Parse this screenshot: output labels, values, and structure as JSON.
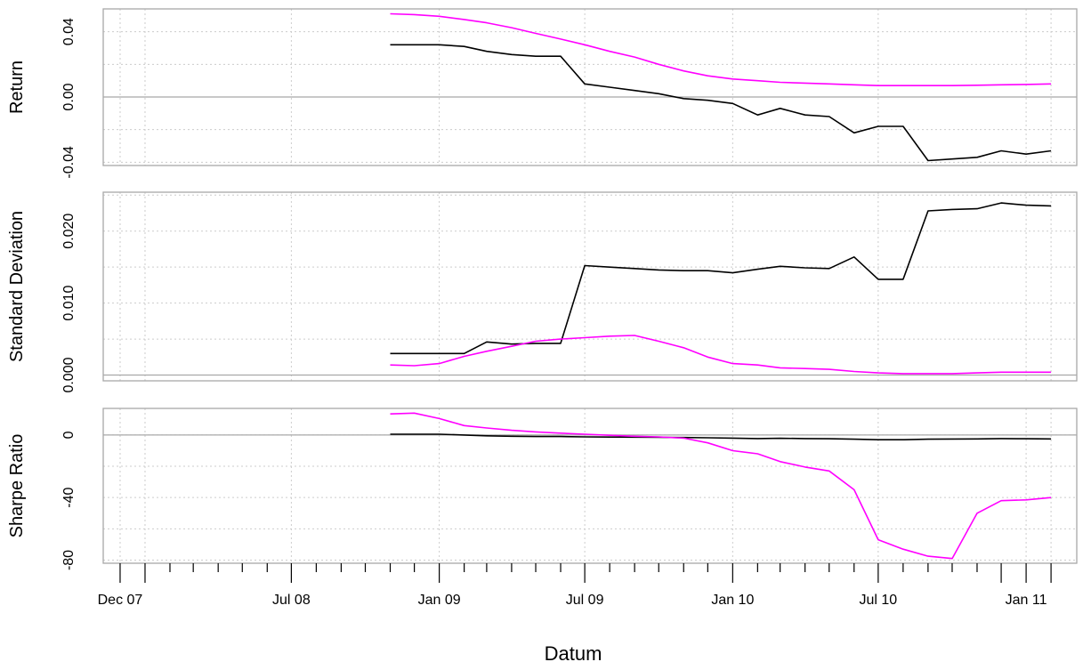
{
  "chart_data": {
    "type": "line",
    "xlabel": "Datum",
    "x_ticks": [
      {
        "date": "2007-12-01",
        "label": "Dec 07",
        "major": true
      },
      {
        "date": "2008-01-01",
        "label": "",
        "major": true
      },
      {
        "date": "2008-02-01",
        "label": "",
        "major": false
      },
      {
        "date": "2008-03-01",
        "label": "",
        "major": false
      },
      {
        "date": "2008-04-01",
        "label": "",
        "major": false
      },
      {
        "date": "2008-05-01",
        "label": "",
        "major": false
      },
      {
        "date": "2008-06-01",
        "label": "",
        "major": false
      },
      {
        "date": "2008-07-01",
        "label": "Jul 08",
        "major": true
      },
      {
        "date": "2008-08-01",
        "label": "",
        "major": false
      },
      {
        "date": "2008-09-01",
        "label": "",
        "major": false
      },
      {
        "date": "2008-10-01",
        "label": "",
        "major": false
      },
      {
        "date": "2008-11-01",
        "label": "",
        "major": false
      },
      {
        "date": "2008-12-01",
        "label": "",
        "major": false
      },
      {
        "date": "2009-01-01",
        "label": "Jan 09",
        "major": true
      },
      {
        "date": "2009-02-01",
        "label": "",
        "major": false
      },
      {
        "date": "2009-03-01",
        "label": "",
        "major": false
      },
      {
        "date": "2009-04-01",
        "label": "",
        "major": false
      },
      {
        "date": "2009-05-01",
        "label": "",
        "major": false
      },
      {
        "date": "2009-06-01",
        "label": "",
        "major": false
      },
      {
        "date": "2009-07-01",
        "label": "Jul 09",
        "major": true
      },
      {
        "date": "2009-08-01",
        "label": "",
        "major": false
      },
      {
        "date": "2009-09-01",
        "label": "",
        "major": false
      },
      {
        "date": "2009-10-01",
        "label": "",
        "major": false
      },
      {
        "date": "2009-11-01",
        "label": "",
        "major": false
      },
      {
        "date": "2009-12-01",
        "label": "",
        "major": false
      },
      {
        "date": "2010-01-01",
        "label": "Jan 10",
        "major": true
      },
      {
        "date": "2010-02-01",
        "label": "",
        "major": false
      },
      {
        "date": "2010-03-01",
        "label": "",
        "major": false
      },
      {
        "date": "2010-04-01",
        "label": "",
        "major": false
      },
      {
        "date": "2010-05-01",
        "label": "",
        "major": false
      },
      {
        "date": "2010-06-01",
        "label": "",
        "major": false
      },
      {
        "date": "2010-07-01",
        "label": "Jul 10",
        "major": true
      },
      {
        "date": "2010-08-01",
        "label": "",
        "major": false
      },
      {
        "date": "2010-09-01",
        "label": "",
        "major": false
      },
      {
        "date": "2010-10-01",
        "label": "",
        "major": false
      },
      {
        "date": "2010-11-01",
        "label": "",
        "major": false
      },
      {
        "date": "2010-12-01",
        "label": "",
        "major": true
      },
      {
        "date": "2011-01-01",
        "label": "Jan 11",
        "major": true
      },
      {
        "date": "2011-02-01",
        "label": "",
        "major": true
      }
    ],
    "x_grid_dates": [
      "2007-12-01",
      "2008-01-01",
      "2008-07-01",
      "2009-01-01",
      "2009-07-01",
      "2010-01-01",
      "2010-07-01",
      "2011-01-01",
      "2011-02-01"
    ],
    "x_range": [
      "2007-11-10",
      "2011-03-05"
    ],
    "panels": [
      {
        "ylabel": "Return",
        "ylim": [
          -0.042,
          0.054
        ],
        "y_ticks": [
          -0.04,
          0.0,
          0.04
        ],
        "y_tick_labels": [
          "-0.04",
          "0.00",
          "0.04"
        ],
        "y_grid": [
          -0.04,
          -0.02,
          0.0,
          0.02,
          0.04
        ],
        "zero_line": 0.0,
        "series": [
          {
            "color": "#000000",
            "x": [
              "2008-11-01",
              "2008-12-01",
              "2009-01-01",
              "2009-02-01",
              "2009-03-01",
              "2009-04-01",
              "2009-05-01",
              "2009-06-01",
              "2009-07-01",
              "2009-08-01",
              "2009-09-01",
              "2009-10-01",
              "2009-11-01",
              "2009-12-01",
              "2010-01-01",
              "2010-02-01",
              "2010-03-01",
              "2010-04-01",
              "2010-05-01",
              "2010-06-01",
              "2010-07-01",
              "2010-08-01",
              "2010-09-01",
              "2010-10-01",
              "2010-11-01",
              "2010-12-01",
              "2011-01-01",
              "2011-02-01"
            ],
            "y": [
              0.032,
              0.032,
              0.032,
              0.031,
              0.028,
              0.026,
              0.025,
              0.025,
              0.008,
              0.006,
              0.004,
              0.002,
              -0.001,
              -0.002,
              -0.004,
              -0.011,
              -0.007,
              -0.011,
              -0.012,
              -0.022,
              -0.018,
              -0.018,
              -0.039,
              -0.038,
              -0.037,
              -0.033,
              -0.035,
              -0.033
            ]
          },
          {
            "color": "#ff00ff",
            "x": [
              "2008-11-01",
              "2008-12-01",
              "2009-01-01",
              "2009-02-01",
              "2009-03-01",
              "2009-04-01",
              "2009-05-01",
              "2009-06-01",
              "2009-07-01",
              "2009-08-01",
              "2009-09-01",
              "2009-10-01",
              "2009-11-01",
              "2009-12-01",
              "2010-01-01",
              "2010-02-01",
              "2010-03-01",
              "2010-04-01",
              "2010-05-01",
              "2010-06-01",
              "2010-07-01",
              "2010-08-01",
              "2010-09-01",
              "2010-10-01",
              "2010-11-01",
              "2010-12-01",
              "2011-01-01",
              "2011-02-01"
            ],
            "y": [
              0.051,
              0.0505,
              0.0495,
              0.0475,
              0.0455,
              0.0425,
              0.039,
              0.0355,
              0.032,
              0.028,
              0.0245,
              0.02,
              0.016,
              0.013,
              0.011,
              0.01,
              0.009,
              0.0085,
              0.008,
              0.0075,
              0.007,
              0.007,
              0.007,
              0.007,
              0.0072,
              0.0075,
              0.0077,
              0.008
            ]
          }
        ]
      },
      {
        "ylabel": "Standard Deviation",
        "ylim": [
          -0.0008,
          0.0254
        ],
        "y_ticks": [
          0.0,
          0.01,
          0.02
        ],
        "y_tick_labels": [
          "0.000",
          "0.010",
          "0.020"
        ],
        "y_grid": [
          0.0,
          0.005,
          0.01,
          0.015,
          0.02,
          0.025
        ],
        "zero_line": 0.0,
        "series": [
          {
            "color": "#000000",
            "x": [
              "2008-11-01",
              "2008-12-01",
              "2009-01-01",
              "2009-02-01",
              "2009-03-01",
              "2009-04-01",
              "2009-05-01",
              "2009-06-01",
              "2009-07-01",
              "2009-08-01",
              "2009-09-01",
              "2009-10-01",
              "2009-11-01",
              "2009-12-01",
              "2010-01-01",
              "2010-02-01",
              "2010-03-01",
              "2010-04-01",
              "2010-05-01",
              "2010-06-01",
              "2010-07-01",
              "2010-08-01",
              "2010-09-01",
              "2010-10-01",
              "2010-11-01",
              "2010-12-01",
              "2011-01-01",
              "2011-02-01"
            ],
            "y": [
              0.003,
              0.003,
              0.003,
              0.003,
              0.0046,
              0.0043,
              0.0044,
              0.0044,
              0.0152,
              0.015,
              0.0148,
              0.0146,
              0.0145,
              0.0145,
              0.0142,
              0.0147,
              0.0151,
              0.0149,
              0.0148,
              0.0164,
              0.0133,
              0.0133,
              0.0228,
              0.023,
              0.0231,
              0.0239,
              0.0236,
              0.0235
            ]
          },
          {
            "color": "#ff00ff",
            "x": [
              "2008-11-01",
              "2008-12-01",
              "2009-01-01",
              "2009-02-01",
              "2009-03-01",
              "2009-04-01",
              "2009-05-01",
              "2009-06-01",
              "2009-07-01",
              "2009-08-01",
              "2009-09-01",
              "2009-10-01",
              "2009-11-01",
              "2009-12-01",
              "2010-01-01",
              "2010-02-01",
              "2010-03-01",
              "2010-04-01",
              "2010-05-01",
              "2010-06-01",
              "2010-07-01",
              "2010-08-01",
              "2010-09-01",
              "2010-10-01",
              "2010-11-01",
              "2010-12-01",
              "2011-01-01",
              "2011-02-01"
            ],
            "y": [
              0.0014,
              0.0013,
              0.0016,
              0.0026,
              0.0033,
              0.004,
              0.0047,
              0.005,
              0.0052,
              0.0054,
              0.0055,
              0.0047,
              0.0038,
              0.0025,
              0.0016,
              0.0014,
              0.001,
              0.0009,
              0.0008,
              0.0005,
              0.0003,
              0.0002,
              0.0002,
              0.0002,
              0.0003,
              0.0004,
              0.0004,
              0.0004
            ]
          }
        ]
      },
      {
        "ylabel": "Sharpe Ratio",
        "ylim": [
          -82,
          17
        ],
        "y_ticks": [
          -80,
          -40,
          0
        ],
        "y_tick_labels": [
          "-80",
          "-40",
          "0"
        ],
        "y_grid": [
          -80,
          -60,
          -40,
          -20,
          0
        ],
        "zero_line": 0,
        "series": [
          {
            "color": "#000000",
            "x": [
              "2008-11-01",
              "2008-12-01",
              "2009-01-01",
              "2009-02-01",
              "2009-03-01",
              "2009-04-01",
              "2009-05-01",
              "2009-06-01",
              "2009-07-01",
              "2009-08-01",
              "2009-09-01",
              "2009-10-01",
              "2009-11-01",
              "2009-12-01",
              "2010-01-01",
              "2010-02-01",
              "2010-03-01",
              "2010-04-01",
              "2010-05-01",
              "2010-06-01",
              "2010-07-01",
              "2010-08-01",
              "2010-09-01",
              "2010-10-01",
              "2010-11-01",
              "2010-12-01",
              "2011-01-01",
              "2011-02-01"
            ],
            "y": [
              0.5,
              0.5,
              0.5,
              0.0,
              -0.5,
              -0.8,
              -1.0,
              -1.0,
              -1.2,
              -1.3,
              -1.4,
              -1.5,
              -1.6,
              -1.8,
              -2.0,
              -2.3,
              -2.1,
              -2.3,
              -2.4,
              -2.7,
              -3.0,
              -3.0,
              -2.7,
              -2.6,
              -2.5,
              -2.3,
              -2.4,
              -2.5
            ]
          },
          {
            "color": "#ff00ff",
            "x": [
              "2008-11-01",
              "2008-12-01",
              "2009-01-01",
              "2009-02-01",
              "2009-03-01",
              "2009-04-01",
              "2009-05-01",
              "2009-06-01",
              "2009-07-01",
              "2009-08-01",
              "2009-09-01",
              "2009-10-01",
              "2009-11-01",
              "2009-12-01",
              "2010-01-01",
              "2010-02-01",
              "2010-03-01",
              "2010-04-01",
              "2010-05-01",
              "2010-06-01",
              "2010-07-01",
              "2010-08-01",
              "2010-09-01",
              "2010-10-01",
              "2010-11-01",
              "2010-12-01",
              "2011-01-01",
              "2011-02-01"
            ],
            "y": [
              13.5,
              14.0,
              10.5,
              6.0,
              4.5,
              3.0,
              2.0,
              1.2,
              0.5,
              -0.2,
              -0.8,
              -1.2,
              -2.0,
              -5.0,
              -10.0,
              -12.0,
              -17.0,
              -20.5,
              -23.0,
              -35.0,
              -67.0,
              -73.0,
              -77.5,
              -79.0,
              -50.0,
              -42.0,
              -41.5,
              -40.0
            ]
          }
        ]
      }
    ]
  }
}
